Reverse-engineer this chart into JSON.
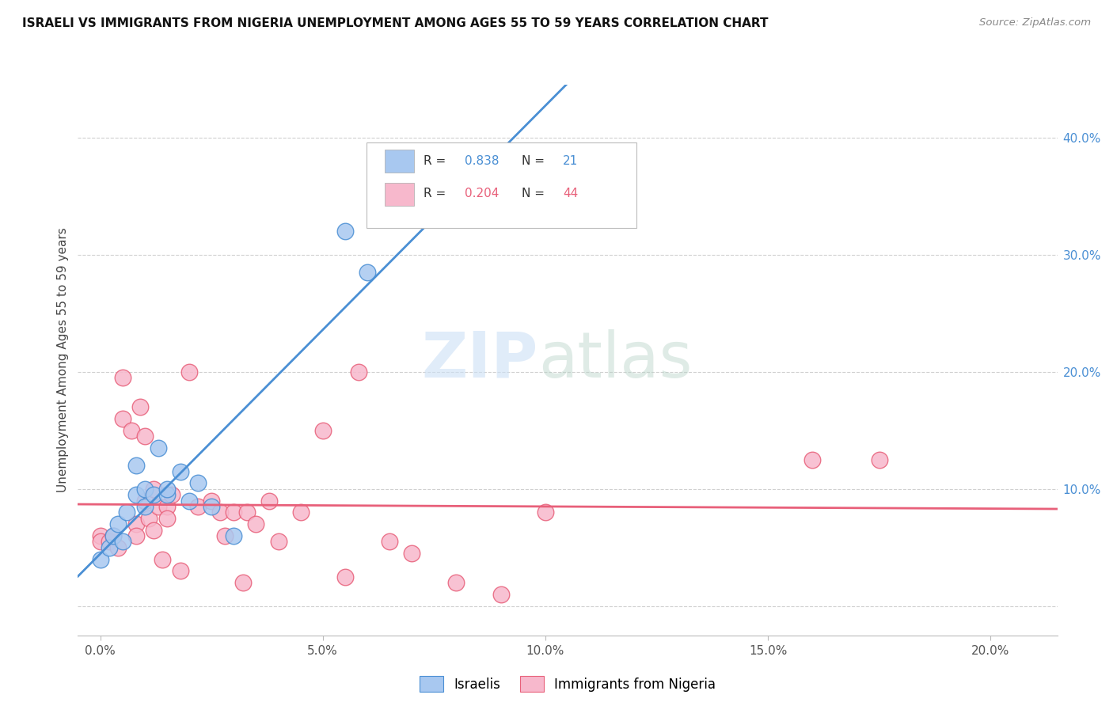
{
  "title": "ISRAELI VS IMMIGRANTS FROM NIGERIA UNEMPLOYMENT AMONG AGES 55 TO 59 YEARS CORRELATION CHART",
  "source": "Source: ZipAtlas.com",
  "ylabel": "Unemployment Among Ages 55 to 59 years",
  "xlabel_ticks": [
    "0.0%",
    "5.0%",
    "10.0%",
    "15.0%",
    "20.0%"
  ],
  "xlabel_vals": [
    0.0,
    0.05,
    0.1,
    0.15,
    0.2
  ],
  "xlim": [
    -0.005,
    0.215
  ],
  "ylim": [
    -0.025,
    0.445
  ],
  "israeli_R": 0.838,
  "israeli_N": 21,
  "nigeria_R": 0.204,
  "nigeria_N": 44,
  "israeli_color": "#a8c8f0",
  "nigerian_color": "#f7b8cc",
  "israeli_line_color": "#4a8fd4",
  "nigerian_line_color": "#e8607a",
  "israeli_scatter_x": [
    0.0,
    0.002,
    0.003,
    0.004,
    0.005,
    0.006,
    0.008,
    0.008,
    0.01,
    0.01,
    0.012,
    0.013,
    0.015,
    0.015,
    0.018,
    0.02,
    0.022,
    0.025,
    0.03,
    0.055,
    0.06
  ],
  "israeli_scatter_y": [
    0.04,
    0.05,
    0.06,
    0.07,
    0.055,
    0.08,
    0.095,
    0.12,
    0.085,
    0.1,
    0.095,
    0.135,
    0.095,
    0.1,
    0.115,
    0.09,
    0.105,
    0.085,
    0.06,
    0.32,
    0.285
  ],
  "nigerian_scatter_x": [
    0.0,
    0.0,
    0.002,
    0.003,
    0.004,
    0.005,
    0.005,
    0.007,
    0.008,
    0.008,
    0.009,
    0.01,
    0.01,
    0.011,
    0.012,
    0.012,
    0.013,
    0.014,
    0.015,
    0.015,
    0.016,
    0.018,
    0.02,
    0.022,
    0.025,
    0.027,
    0.028,
    0.03,
    0.032,
    0.033,
    0.035,
    0.038,
    0.04,
    0.045,
    0.05,
    0.055,
    0.058,
    0.065,
    0.07,
    0.08,
    0.09,
    0.1,
    0.16,
    0.175
  ],
  "nigerian_scatter_y": [
    0.06,
    0.055,
    0.055,
    0.06,
    0.05,
    0.195,
    0.16,
    0.15,
    0.07,
    0.06,
    0.17,
    0.145,
    0.09,
    0.075,
    0.1,
    0.065,
    0.085,
    0.04,
    0.085,
    0.075,
    0.095,
    0.03,
    0.2,
    0.085,
    0.09,
    0.08,
    0.06,
    0.08,
    0.02,
    0.08,
    0.07,
    0.09,
    0.055,
    0.08,
    0.15,
    0.025,
    0.2,
    0.055,
    0.045,
    0.02,
    0.01,
    0.08,
    0.125,
    0.125
  ],
  "watermark_zip": "ZIP",
  "watermark_atlas": "atlas",
  "background_color": "#ffffff",
  "grid_color": "#d0d0d0"
}
